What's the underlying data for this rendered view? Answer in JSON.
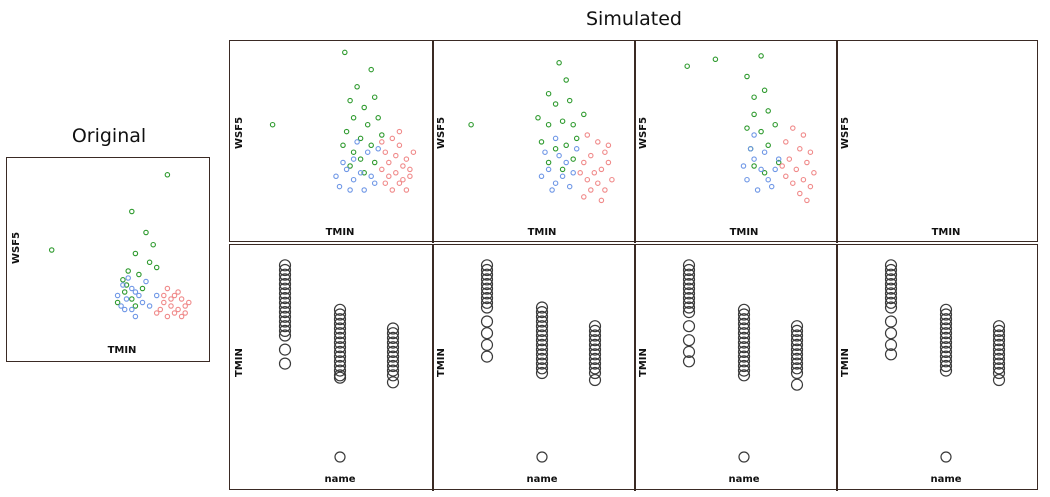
{
  "titles": {
    "original": "Original",
    "simulated": "Simulated"
  },
  "axis_labels": {
    "scatter_x": "TMIN",
    "scatter_y": "WSF5",
    "strip_x": "name",
    "strip_y": "TMIN"
  },
  "colors": {
    "group_a": "#2e9a2e",
    "group_b": "#6f97e6",
    "group_c": "#f08a8a",
    "panel_border": "#3a2a24",
    "strip_circle": "#3a3a3a"
  },
  "chart_data": [
    {
      "type": "scatter",
      "panel": "original",
      "xlabel": "TMIN",
      "ylabel": "WSF5",
      "xlim": [
        0,
        100
      ],
      "ylim": [
        0,
        100
      ],
      "series": [
        {
          "color": "#2e9a2e",
          "points": [
            [
              80,
              95
            ],
            [
              60,
              74
            ],
            [
              15,
              52
            ],
            [
              68,
              62
            ],
            [
              72,
              55
            ],
            [
              62,
              50
            ],
            [
              70,
              45
            ],
            [
              58,
              40
            ],
            [
              55,
              35
            ],
            [
              64,
              38
            ],
            [
              56,
              28
            ],
            [
              60,
              24
            ],
            [
              52,
              22
            ],
            [
              66,
              30
            ],
            [
              62,
              20
            ],
            [
              57,
              32
            ],
            [
              74,
              42
            ]
          ]
        },
        {
          "color": "#6f97e6",
          "points": [
            [
              55,
              32
            ],
            [
              60,
              30
            ],
            [
              52,
              26
            ],
            [
              57,
              24
            ],
            [
              64,
              26
            ],
            [
              60,
              18
            ],
            [
              66,
              22
            ],
            [
              56,
              18
            ],
            [
              62,
              14
            ],
            [
              70,
              20
            ],
            [
              74,
              26
            ],
            [
              58,
              36
            ],
            [
              68,
              34
            ],
            [
              62,
              28
            ],
            [
              54,
              20
            ]
          ]
        },
        {
          "color": "#f08a8a",
          "points": [
            [
              80,
              30
            ],
            [
              84,
              26
            ],
            [
              88,
              24
            ],
            [
              78,
              22
            ],
            [
              82,
              20
            ],
            [
              90,
              20
            ],
            [
              86,
              18
            ],
            [
              76,
              18
            ],
            [
              84,
              16
            ],
            [
              92,
              22
            ],
            [
              80,
              14
            ],
            [
              88,
              14
            ],
            [
              78,
              26
            ],
            [
              86,
              28
            ],
            [
              74,
              16
            ],
            [
              82,
              24
            ],
            [
              90,
              16
            ]
          ]
        }
      ]
    },
    {
      "type": "scatter",
      "panel": "simulated-1",
      "series": [
        {
          "color": "#2e9a2e",
          "points": [
            [
              55,
              98
            ],
            [
              70,
              88
            ],
            [
              14,
              56
            ],
            [
              62,
              78
            ],
            [
              58,
              70
            ],
            [
              66,
              66
            ],
            [
              72,
              72
            ],
            [
              60,
              60
            ],
            [
              56,
              52
            ],
            [
              64,
              48
            ],
            [
              68,
              56
            ],
            [
              74,
              60
            ],
            [
              60,
              40
            ],
            [
              54,
              44
            ],
            [
              70,
              44
            ],
            [
              76,
              50
            ],
            [
              64,
              36
            ],
            [
              58,
              32
            ],
            [
              66,
              28
            ],
            [
              72,
              34
            ]
          ]
        },
        {
          "color": "#6f97e6",
          "points": [
            [
              56,
              30
            ],
            [
              60,
              24
            ],
            [
              50,
              26
            ],
            [
              64,
              28
            ],
            [
              58,
              18
            ],
            [
              70,
              26
            ],
            [
              66,
              18
            ],
            [
              72,
              22
            ],
            [
              54,
              34
            ],
            [
              68,
              40
            ],
            [
              62,
              46
            ],
            [
              74,
              42
            ],
            [
              60,
              36
            ],
            [
              52,
              20
            ]
          ]
        },
        {
          "color": "#f08a8a",
          "points": [
            [
              82,
              48
            ],
            [
              86,
              44
            ],
            [
              78,
              40
            ],
            [
              84,
              38
            ],
            [
              90,
              36
            ],
            [
              80,
              34
            ],
            [
              88,
              32
            ],
            [
              76,
              30
            ],
            [
              84,
              28
            ],
            [
              92,
              30
            ],
            [
              80,
              26
            ],
            [
              88,
              24
            ],
            [
              78,
              22
            ],
            [
              86,
              22
            ],
            [
              82,
              18
            ],
            [
              90,
              18
            ],
            [
              94,
              40
            ],
            [
              76,
              46
            ],
            [
              86,
              52
            ],
            [
              92,
              26
            ]
          ]
        }
      ]
    },
    {
      "type": "scatter",
      "panel": "simulated-2",
      "series": [
        {
          "color": "#2e9a2e",
          "points": [
            [
              62,
              92
            ],
            [
              66,
              82
            ],
            [
              12,
              56
            ],
            [
              56,
              74
            ],
            [
              60,
              68
            ],
            [
              68,
              70
            ],
            [
              64,
              58
            ],
            [
              56,
              56
            ],
            [
              70,
              56
            ],
            [
              52,
              46
            ],
            [
              60,
              42
            ],
            [
              66,
              44
            ],
            [
              72,
              48
            ],
            [
              56,
              34
            ],
            [
              64,
              30
            ],
            [
              70,
              36
            ],
            [
              76,
              62
            ],
            [
              50,
              60
            ]
          ]
        },
        {
          "color": "#6f97e6",
          "points": [
            [
              56,
              30
            ],
            [
              60,
              22
            ],
            [
              52,
              26
            ],
            [
              64,
              26
            ],
            [
              58,
              18
            ],
            [
              66,
              34
            ],
            [
              62,
              38
            ],
            [
              70,
              28
            ],
            [
              54,
              40
            ],
            [
              68,
              20
            ],
            [
              72,
              42
            ],
            [
              60,
              48
            ]
          ]
        },
        {
          "color": "#f08a8a",
          "points": [
            [
              78,
              50
            ],
            [
              84,
              46
            ],
            [
              88,
              40
            ],
            [
              80,
              38
            ],
            [
              90,
              34
            ],
            [
              76,
              34
            ],
            [
              86,
              30
            ],
            [
              82,
              28
            ],
            [
              92,
              24
            ],
            [
              78,
              24
            ],
            [
              84,
              22
            ],
            [
              88,
              18
            ],
            [
              80,
              18
            ],
            [
              76,
              14
            ],
            [
              86,
              12
            ],
            [
              74,
              28
            ],
            [
              90,
              44
            ]
          ]
        }
      ]
    },
    {
      "type": "scatter",
      "panel": "simulated-3",
      "series": [
        {
          "color": "#2e9a2e",
          "points": [
            [
              62,
              96
            ],
            [
              36,
              94
            ],
            [
              20,
              90
            ],
            [
              54,
              84
            ],
            [
              58,
              72
            ],
            [
              64,
              76
            ],
            [
              58,
              62
            ],
            [
              66,
              64
            ],
            [
              54,
              54
            ],
            [
              62,
              52
            ],
            [
              70,
              56
            ],
            [
              56,
              42
            ],
            [
              66,
              44
            ],
            [
              58,
              32
            ],
            [
              72,
              34
            ],
            [
              64,
              28
            ]
          ]
        },
        {
          "color": "#6f97e6",
          "points": [
            [
              58,
              36
            ],
            [
              62,
              30
            ],
            [
              54,
              24
            ],
            [
              66,
              24
            ],
            [
              60,
              18
            ],
            [
              70,
              30
            ],
            [
              56,
              42
            ],
            [
              64,
              40
            ],
            [
              58,
              50
            ],
            [
              68,
              20
            ],
            [
              72,
              36
            ],
            [
              52,
              32
            ]
          ]
        },
        {
          "color": "#f08a8a",
          "points": [
            [
              80,
              54
            ],
            [
              86,
              50
            ],
            [
              76,
              46
            ],
            [
              84,
              42
            ],
            [
              90,
              40
            ],
            [
              78,
              36
            ],
            [
              88,
              34
            ],
            [
              82,
              30
            ],
            [
              92,
              28
            ],
            [
              76,
              26
            ],
            [
              86,
              24
            ],
            [
              80,
              22
            ],
            [
              90,
              20
            ],
            [
              84,
              16
            ],
            [
              88,
              12
            ],
            [
              74,
              32
            ]
          ]
        }
      ]
    },
    {
      "type": "strip",
      "panel": "simulated-1",
      "xlabel": "name",
      "ylabel": "TMIN",
      "groups": [
        {
          "x": 1,
          "values": [
            98,
            94,
            90,
            86,
            82,
            78,
            74,
            70,
            66,
            62,
            58,
            54,
            50,
            46,
            42,
            38,
            26,
            14
          ]
        },
        {
          "x": 2,
          "values": [
            60,
            56,
            52,
            48,
            44,
            40,
            36,
            32,
            28,
            24,
            20,
            16,
            12,
            8,
            4,
            2
          ]
        },
        {
          "x": 3,
          "values": [
            44,
            40,
            36,
            32,
            28,
            24,
            20,
            16,
            12,
            8,
            4,
            -2
          ]
        },
        {
          "x": 2,
          "values": [
            -150
          ]
        }
      ]
    },
    {
      "type": "strip",
      "panel": "simulated-2",
      "groups": [
        {
          "x": 1,
          "values": [
            98,
            94,
            90,
            86,
            82,
            78,
            74,
            70,
            66,
            62,
            50,
            40,
            30,
            20
          ]
        },
        {
          "x": 2,
          "values": [
            62,
            58,
            54,
            50,
            46,
            42,
            38,
            34,
            30,
            26,
            22,
            18,
            14,
            10,
            6
          ]
        },
        {
          "x": 3,
          "values": [
            46,
            42,
            38,
            34,
            30,
            26,
            22,
            18,
            14,
            10,
            6,
            0
          ]
        },
        {
          "x": 2,
          "values": [
            -150
          ]
        }
      ]
    },
    {
      "type": "strip",
      "panel": "simulated-3",
      "groups": [
        {
          "x": 1,
          "values": [
            98,
            94,
            90,
            86,
            82,
            78,
            74,
            70,
            66,
            62,
            58,
            46,
            34,
            24,
            16
          ]
        },
        {
          "x": 2,
          "values": [
            60,
            56,
            52,
            48,
            44,
            40,
            36,
            32,
            28,
            24,
            20,
            16,
            12,
            8,
            4
          ]
        },
        {
          "x": 3,
          "values": [
            46,
            42,
            38,
            34,
            30,
            26,
            22,
            18,
            14,
            10,
            6,
            -4
          ]
        },
        {
          "x": 2,
          "values": [
            -150
          ]
        }
      ]
    },
    {
      "type": "strip",
      "panel": "simulated-4",
      "groups": [
        {
          "x": 1,
          "values": [
            98,
            94,
            90,
            86,
            82,
            78,
            74,
            70,
            66,
            62,
            50,
            40,
            30,
            22
          ]
        },
        {
          "x": 2,
          "values": [
            60,
            56,
            52,
            48,
            44,
            40,
            36,
            32,
            28,
            24,
            20,
            16,
            12,
            8
          ]
        },
        {
          "x": 3,
          "values": [
            46,
            42,
            38,
            34,
            30,
            26,
            22,
            18,
            14,
            10,
            6,
            0
          ]
        },
        {
          "x": 2,
          "values": [
            -150
          ]
        }
      ]
    }
  ]
}
